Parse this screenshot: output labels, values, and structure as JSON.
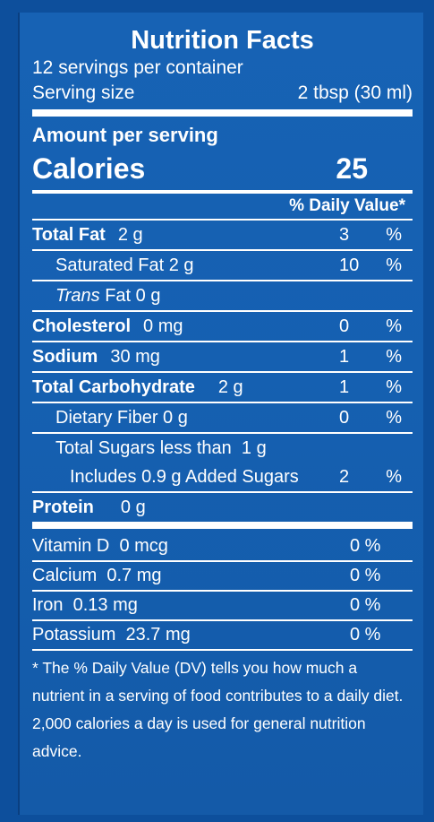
{
  "label": {
    "title": "Nutrition Facts",
    "servings_per_container": "12 servings per container",
    "serving_size_label": "Serving size",
    "serving_size_value": "2 tbsp (30 ml)",
    "amount_per_serving": "Amount per serving",
    "calories_label": "Calories",
    "calories_value": "25",
    "daily_value_header": "% Daily Value*",
    "nutrients": [
      {
        "name": "Total Fat",
        "amount": "2 g",
        "pct": "3",
        "unit": "%"
      },
      {
        "name": "Saturated Fat",
        "amount": "2 g",
        "pct": "10",
        "unit": "%"
      },
      {
        "name_italic": "Trans",
        "name": "Fat",
        "amount": "0 g"
      },
      {
        "name": "Cholesterol",
        "amount": "0 mg",
        "pct": "0",
        "unit": "%"
      },
      {
        "name": "Sodium",
        "amount": "30 mg",
        "pct": "1",
        "unit": "%"
      },
      {
        "name": "Total Carbohydrate",
        "amount": "2 g",
        "pct": "1",
        "unit": "%"
      },
      {
        "name": "Dietary Fiber",
        "amount": "0 g",
        "pct": "0",
        "unit": "%"
      },
      {
        "name": "Total Sugars less than",
        "amount": "1 g"
      },
      {
        "name": "Includes",
        "amount": "0.9 g Added Sugars",
        "pct": "2",
        "unit": "%"
      },
      {
        "name": "Protein",
        "amount": "0 g"
      }
    ],
    "vitamins": [
      {
        "name": "Vitamin D",
        "amount": "0 mcg",
        "pct": "0 %"
      },
      {
        "name": "Calcium",
        "amount": "0.7 mg",
        "pct": "0 %"
      },
      {
        "name": "Iron",
        "amount": "0.13 mg",
        "pct": "0 %"
      },
      {
        "name": "Potassium",
        "amount": "23.7 mg",
        "pct": "0 %"
      }
    ],
    "footnote": "* The % Daily Value (DV) tells you how much a nutrient in a serving of food contributes to a daily diet. 2,000 calories a day is used for general nutrition advice."
  }
}
